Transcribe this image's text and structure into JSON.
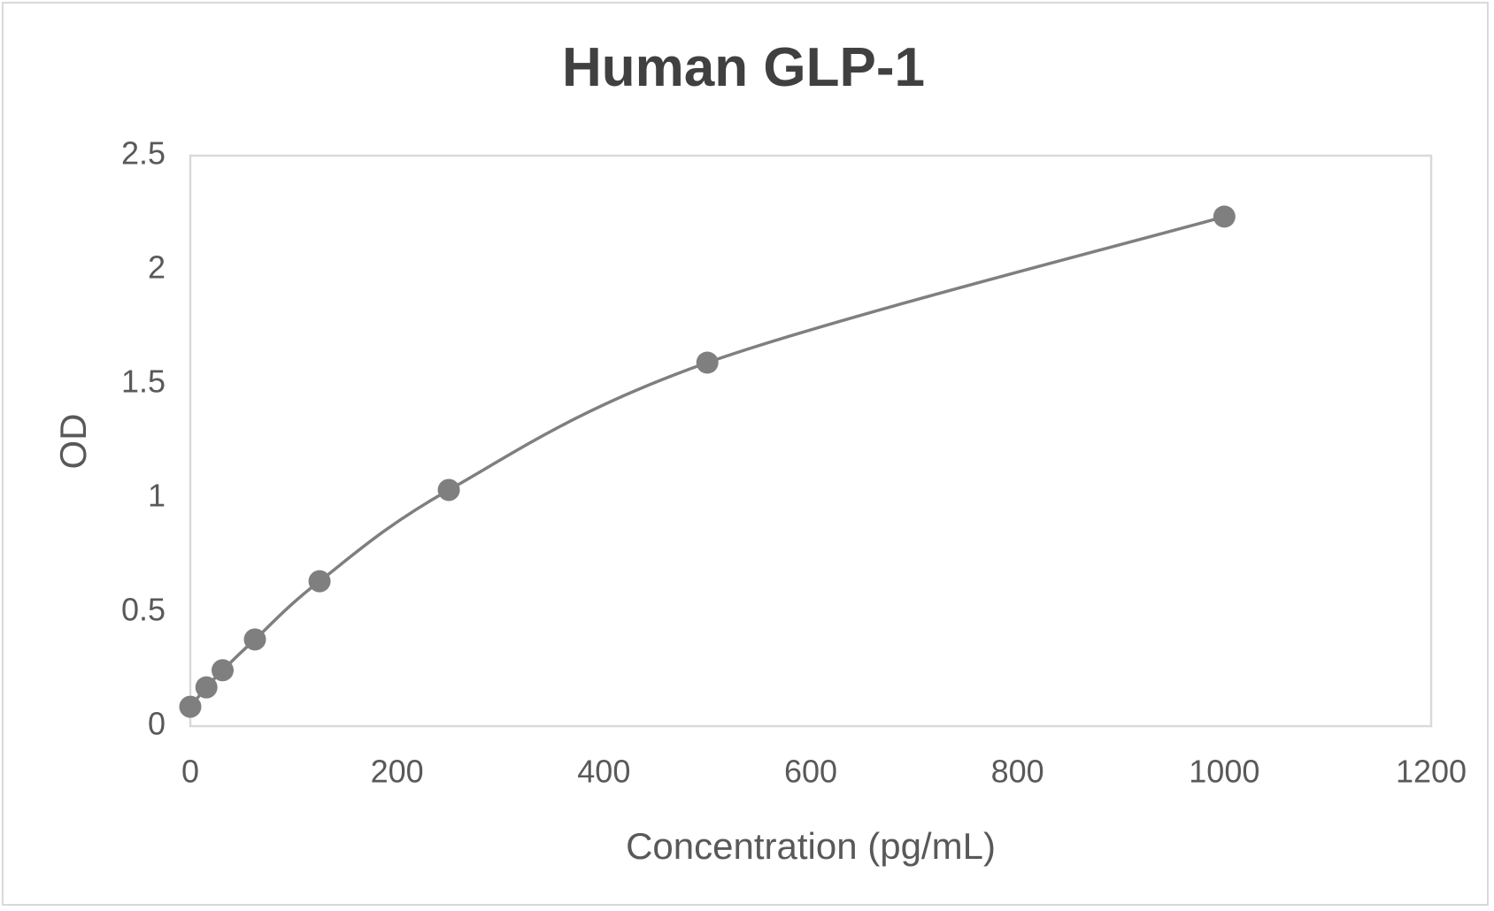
{
  "chart_data": {
    "type": "scatter",
    "title": "Human GLP-1",
    "xlabel": "Concentration (pg/mL)",
    "ylabel": "OD",
    "xlim": [
      0,
      1200
    ],
    "ylim": [
      0,
      2.5
    ],
    "x_ticks": [
      "0",
      "200",
      "400",
      "600",
      "800",
      "1000",
      "1200"
    ],
    "y_ticks": [
      "0",
      "0.5",
      "1",
      "1.5",
      "2",
      "2.5"
    ],
    "grid": false,
    "legend": null,
    "smooth_line": true,
    "series": [
      {
        "name": "Human GLP-1",
        "x": [
          0,
          15.6,
          31.25,
          62.5,
          125,
          250,
          500,
          1000
        ],
        "y": [
          0.085,
          0.17,
          0.245,
          0.38,
          0.635,
          1.035,
          1.593,
          2.233
        ],
        "color": "#7f7f7f"
      }
    ]
  },
  "colors": {
    "title": "#404040",
    "text": "#595959",
    "series": "#7f7f7f",
    "border": "#d9d9d9"
  }
}
